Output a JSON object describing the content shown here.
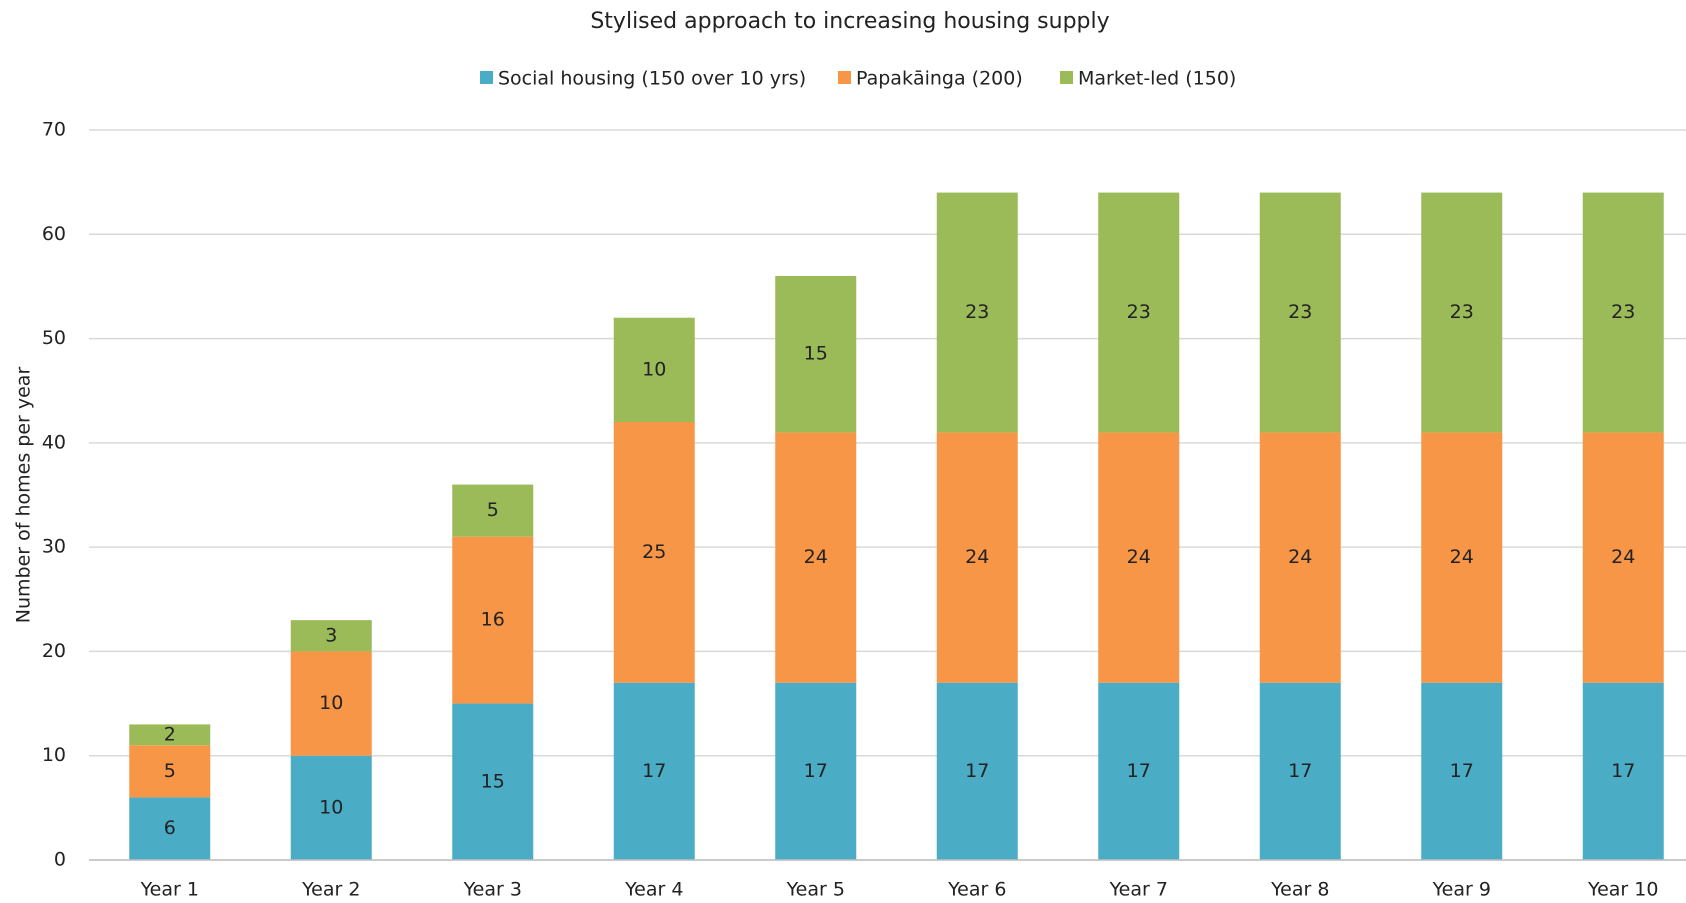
{
  "chart_data": {
    "type": "stacked_bar",
    "title": "Stylised approach to increasing housing supply",
    "y_label": "Number of homes per year",
    "categories": [
      "Year 1",
      "Year 2",
      "Year 3",
      "Year 4",
      "Year 5",
      "Year 6",
      "Year 7",
      "Year 8",
      "Year 9",
      "Year 10"
    ],
    "series": [
      {
        "name": "Social housing (150 over 10 yrs)",
        "color": "#4bacc6",
        "values": [
          6,
          10,
          15,
          17,
          17,
          17,
          17,
          17,
          17,
          17
        ]
      },
      {
        "name": "Papakāinga (200)",
        "color": "#f79646",
        "values": [
          5,
          10,
          16,
          25,
          24,
          24,
          24,
          24,
          24,
          24
        ]
      },
      {
        "name": "Market-led (150)",
        "color": "#9bbb59",
        "values": [
          2,
          3,
          5,
          10,
          15,
          23,
          23,
          23,
          23,
          23
        ]
      }
    ],
    "ylim": [
      0,
      70
    ],
    "yticks": [
      0,
      10,
      20,
      30,
      40,
      50,
      60,
      70
    ],
    "grid": true,
    "legend": "top"
  }
}
